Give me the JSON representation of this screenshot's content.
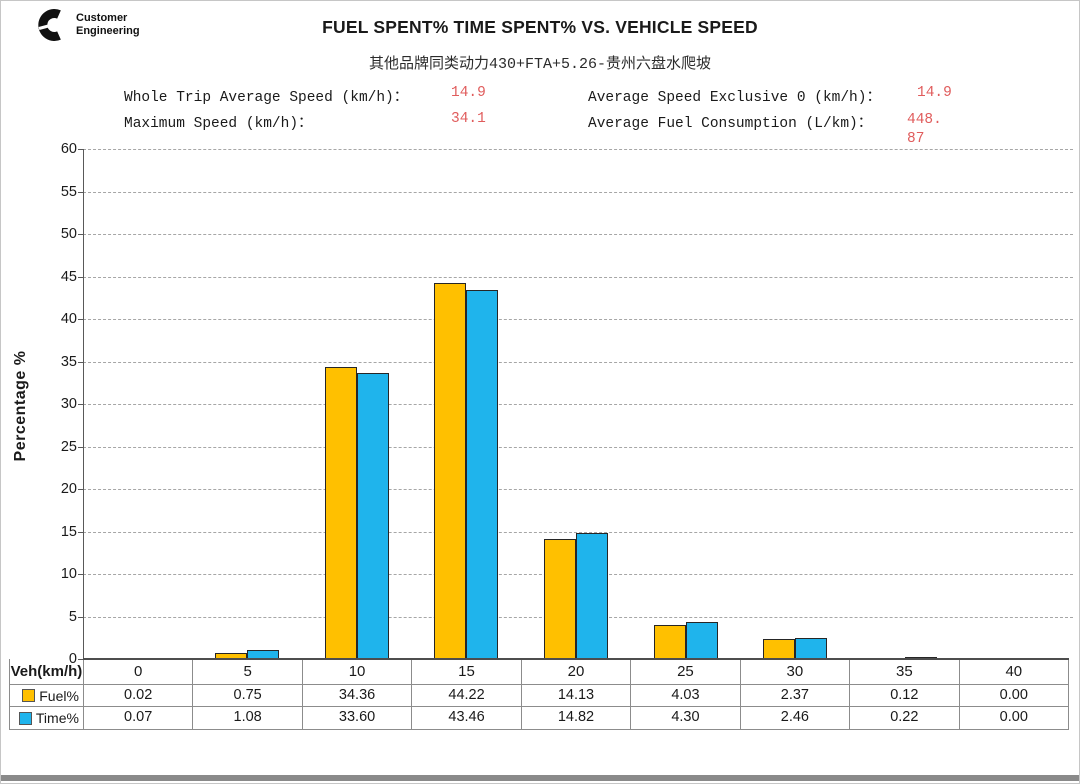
{
  "header": {
    "logo": {
      "line1": "Customer",
      "line2": "Engineering"
    },
    "title": "FUEL SPENT% TIME SPENT% VS. VEHICLE SPEED",
    "subtitle": "其他品牌同类动力430+FTA+5.26-贵州六盘水爬坡"
  },
  "stats": [
    {
      "label": "Whole Trip Average Speed (km/h)：",
      "value": "14.9"
    },
    {
      "label": "Average Speed Exclusive 0 (km/h)：",
      "value": "14.9"
    },
    {
      "label": "Maximum Speed (km/h)：",
      "value": "34.1"
    },
    {
      "label": "Average Fuel Consumption (L/km)：",
      "value": "448.87"
    }
  ],
  "chart_data": {
    "type": "bar",
    "title": "FUEL SPENT% TIME SPENT% VS. VEHICLE SPEED",
    "subtitle": "其他品牌同类动力430+FTA+5.26-贵州六盘水爬坡",
    "categories": [
      0,
      5,
      10,
      15,
      20,
      25,
      30,
      35,
      40
    ],
    "series": [
      {
        "name": "Fuel%",
        "color": "#FFC000",
        "values": [
          0.02,
          0.75,
          34.36,
          44.22,
          14.13,
          4.03,
          2.37,
          0.12,
          0.0
        ]
      },
      {
        "name": "Time%",
        "color": "#1FB4EC",
        "values": [
          0.07,
          1.08,
          33.6,
          43.46,
          14.82,
          4.3,
          2.46,
          0.22,
          0.0
        ]
      }
    ],
    "xlabel": "Veh(km/h)",
    "ylabel": "Percentage %",
    "ylim": [
      0,
      60
    ],
    "ytick_step": 5,
    "grid": "horizontal-dashed",
    "legend_position": "data-table-left"
  },
  "table": {
    "row_header": "Veh(km/h)",
    "columns": [
      "0",
      "5",
      "10",
      "15",
      "20",
      "25",
      "30",
      "35",
      "40"
    ],
    "rows": [
      {
        "label": "Fuel%",
        "values": [
          "0.02",
          "0.75",
          "34.36",
          "44.22",
          "14.13",
          "4.03",
          "2.37",
          "0.12",
          "0.00"
        ]
      },
      {
        "label": "Time%",
        "values": [
          "0.07",
          "1.08",
          "33.60",
          "43.46",
          "14.82",
          "4.30",
          "2.46",
          "0.22",
          "0.00"
        ]
      }
    ]
  },
  "colors": {
    "fuel_bar": "#FFC000",
    "time_bar": "#1FB4EC",
    "bar_border": "#262626",
    "stat_value_red": "#e05c5c",
    "gridline": "#a6a6a6",
    "table_border": "#8c8c8c"
  }
}
